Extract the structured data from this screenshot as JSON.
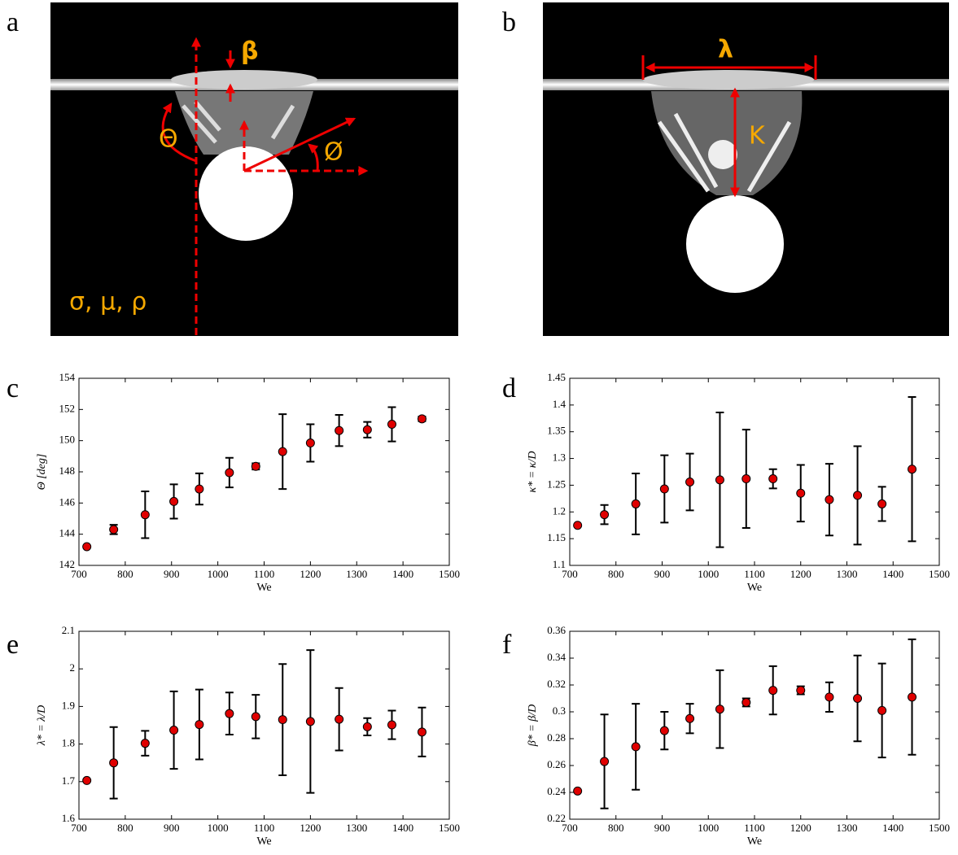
{
  "panels": {
    "labels": [
      "a",
      "b",
      "c",
      "d",
      "e",
      "f"
    ]
  },
  "images": [
    {
      "annotations": [
        "β",
        "Θ",
        "Ø",
        "σ, μ, ρ"
      ]
    },
    {
      "annotations": [
        "λ",
        "K"
      ]
    }
  ],
  "chart_data": [
    {
      "type": "scatter",
      "x_label": "We",
      "y_label": "Θ [deg]",
      "x": [
        717,
        775,
        843,
        905,
        960,
        1025,
        1082,
        1140,
        1200,
        1262,
        1323,
        1376,
        1441
      ],
      "series": [
        {
          "color": "#e00000",
          "values": [
            143.2,
            144.3,
            145.25,
            146.1,
            146.9,
            147.95,
            148.35,
            149.3,
            149.85,
            150.65,
            150.7,
            151.05,
            151.4
          ],
          "errors": [
            0.05,
            0.3,
            1.5,
            1.1,
            1.0,
            0.95,
            0.2,
            2.4,
            1.2,
            1.0,
            0.5,
            1.1,
            0.15
          ]
        }
      ],
      "xlim": [
        700,
        1500
      ],
      "xticks": [
        700,
        800,
        900,
        1000,
        1100,
        1200,
        1300,
        1400,
        1500
      ],
      "ylim": [
        142,
        154
      ],
      "yticks": [
        142,
        144,
        146,
        148,
        150,
        152,
        154
      ]
    },
    {
      "type": "scatter",
      "x_label": "We",
      "y_label": "κ* = κ/D",
      "x": [
        717,
        775,
        843,
        905,
        960,
        1025,
        1082,
        1140,
        1200,
        1262,
        1323,
        1376,
        1441
      ],
      "series": [
        {
          "color": "#e00000",
          "values": [
            1.175,
            1.195,
            1.215,
            1.243,
            1.256,
            1.26,
            1.262,
            1.262,
            1.235,
            1.223,
            1.231,
            1.215,
            1.28
          ],
          "errors": [
            0.001,
            0.018,
            0.057,
            0.063,
            0.053,
            0.126,
            0.092,
            0.018,
            0.053,
            0.067,
            0.092,
            0.032,
            0.135
          ]
        }
      ],
      "xlim": [
        700,
        1500
      ],
      "xticks": [
        700,
        800,
        900,
        1000,
        1100,
        1200,
        1300,
        1400,
        1500
      ],
      "ylim": [
        1.1,
        1.45
      ],
      "yticks": [
        1.1,
        1.15,
        1.2,
        1.25,
        1.3,
        1.35,
        1.4,
        1.45
      ]
    },
    {
      "type": "scatter",
      "x_label": "We",
      "y_label": "λ* = λ/D",
      "x": [
        717,
        775,
        843,
        905,
        960,
        1025,
        1082,
        1140,
        1200,
        1262,
        1323,
        1376,
        1441
      ],
      "series": [
        {
          "color": "#e00000",
          "values": [
            1.703,
            1.75,
            1.802,
            1.837,
            1.852,
            1.881,
            1.873,
            1.865,
            1.86,
            1.866,
            1.846,
            1.851,
            1.832
          ],
          "errors": [
            0.002,
            0.095,
            0.033,
            0.103,
            0.093,
            0.056,
            0.058,
            0.148,
            0.19,
            0.083,
            0.023,
            0.038,
            0.065
          ]
        }
      ],
      "xlim": [
        700,
        1500
      ],
      "xticks": [
        700,
        800,
        900,
        1000,
        1100,
        1200,
        1300,
        1400,
        1500
      ],
      "ylim": [
        1.6,
        2.1
      ],
      "yticks": [
        1.6,
        1.7,
        1.8,
        1.9,
        2,
        2.1
      ]
    },
    {
      "type": "scatter",
      "x_label": "We",
      "y_label": "β* = β/D",
      "x": [
        717,
        775,
        843,
        905,
        960,
        1025,
        1082,
        1140,
        1200,
        1262,
        1323,
        1376,
        1441
      ],
      "series": [
        {
          "color": "#e00000",
          "values": [
            0.241,
            0.263,
            0.274,
            0.286,
            0.295,
            0.302,
            0.307,
            0.316,
            0.316,
            0.311,
            0.31,
            0.301,
            0.311
          ],
          "errors": [
            0.0005,
            0.035,
            0.032,
            0.014,
            0.011,
            0.029,
            0.003,
            0.018,
            0.003,
            0.011,
            0.032,
            0.035,
            0.043
          ]
        }
      ],
      "xlim": [
        700,
        1500
      ],
      "xticks": [
        700,
        800,
        900,
        1000,
        1100,
        1200,
        1300,
        1400,
        1500
      ],
      "ylim": [
        0.22,
        0.36
      ],
      "yticks": [
        0.22,
        0.24,
        0.26,
        0.28,
        0.3,
        0.32,
        0.34,
        0.36
      ]
    }
  ]
}
